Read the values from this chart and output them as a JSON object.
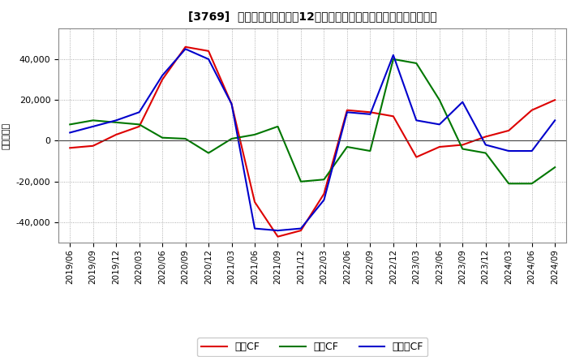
{
  "title": "[3769]  キャッシュフローの12か月移動合計の対前年同期増減額の推移",
  "ylabel": "（百万円）",
  "x_labels": [
    "2019/06",
    "2019/09",
    "2019/12",
    "2020/03",
    "2020/06",
    "2020/09",
    "2020/12",
    "2021/03",
    "2021/06",
    "2021/09",
    "2021/12",
    "2022/03",
    "2022/06",
    "2022/09",
    "2022/12",
    "2023/03",
    "2023/06",
    "2023/09",
    "2023/12",
    "2024/03",
    "2024/06",
    "2024/09"
  ],
  "operating_cf": [
    -3500,
    -2500,
    3000,
    7000,
    30000,
    46000,
    44000,
    18000,
    -30000,
    -47000,
    -44000,
    -26000,
    15000,
    14000,
    12000,
    -8000,
    -3000,
    -2000,
    2000,
    5000,
    15000,
    20000
  ],
  "investing_cf": [
    8000,
    10000,
    9000,
    8000,
    1500,
    1000,
    -6000,
    1000,
    3000,
    7000,
    -20000,
    -19000,
    -3000,
    -5000,
    40000,
    38000,
    20000,
    -4000,
    -6000,
    -21000,
    -21000,
    -13000
  ],
  "free_cf": [
    4000,
    7000,
    10000,
    14000,
    32000,
    45000,
    40000,
    18000,
    -43000,
    -44000,
    -43000,
    -29000,
    14000,
    13000,
    42000,
    10000,
    8000,
    19000,
    -2000,
    -5000,
    -5000,
    10000
  ],
  "ylim": [
    -50000,
    55000
  ],
  "yticks": [
    -40000,
    -20000,
    0,
    20000,
    40000
  ],
  "operating_color": "#dd0000",
  "investing_color": "#007700",
  "free_color": "#0000cc",
  "bg_color": "#ffffff",
  "grid_color": "#999999",
  "legend_operating": "営業CF",
  "legend_investing": "投資CF",
  "legend_free": "フリーCF"
}
